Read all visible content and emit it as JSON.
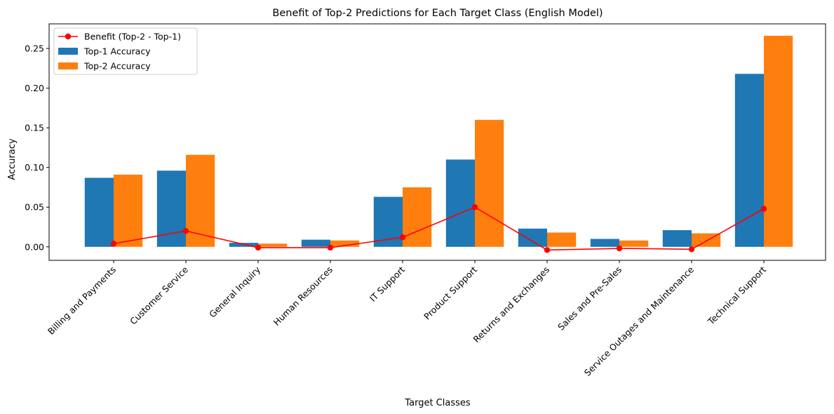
{
  "chart_data": {
    "type": "bar",
    "title": "Benefit of Top-2 Predictions for Each Target Class (English Model)",
    "xlabel": "Target Classes",
    "ylabel": "Accuracy",
    "ylim": [
      -0.017,
      0.281
    ],
    "yticks": [
      0.0,
      0.05,
      0.1,
      0.15,
      0.2,
      0.25
    ],
    "ytick_labels": [
      "0.00",
      "0.05",
      "0.10",
      "0.15",
      "0.20",
      "0.25"
    ],
    "categories": [
      "Billing and Payments",
      "Customer Service",
      "General Inquiry",
      "Human Resources",
      "IT Support",
      "Product Support",
      "Returns and Exchanges",
      "Sales and Pre-Sales",
      "Service Outages and Maintenance",
      "Technical Support"
    ],
    "series": [
      {
        "name": "Top-1 Accuracy",
        "kind": "bar",
        "color": "#1f77b4",
        "values": [
          0.087,
          0.096,
          0.005,
          0.009,
          0.063,
          0.11,
          0.023,
          0.01,
          0.021,
          0.218
        ]
      },
      {
        "name": "Top-2 Accuracy",
        "kind": "bar",
        "color": "#ff7f0e",
        "values": [
          0.091,
          0.116,
          0.004,
          0.008,
          0.075,
          0.16,
          0.018,
          0.008,
          0.017,
          0.266
        ]
      },
      {
        "name": "Benefit (Top-2 - Top-1)",
        "kind": "line",
        "color": "#ff0000",
        "values": [
          0.004,
          0.02,
          -0.001,
          -0.001,
          0.012,
          0.05,
          -0.004,
          -0.002,
          -0.003,
          0.048
        ]
      }
    ],
    "legend": {
      "position": "top-left",
      "entries": [
        "Benefit (Top-2 - Top-1)",
        "Top-1 Accuracy",
        "Top-2 Accuracy"
      ]
    }
  }
}
